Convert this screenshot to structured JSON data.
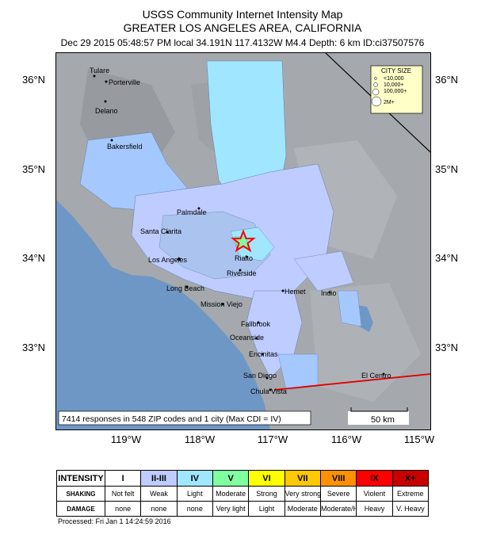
{
  "header": {
    "title": "USGS Community Internet Intensity Map",
    "region": "GREATER LOS ANGELES AREA, CALIFORNIA",
    "event_line": "Dec 29 2015 05:48:57 PM local 34.191N 117.4132W M4.4  Depth: 6 km ID:ci37507576"
  },
  "map": {
    "lat_ticks": [
      "36°N",
      "35°N",
      "34°N",
      "33°N"
    ],
    "lon_ticks": [
      "119°W",
      "118°W",
      "117°W",
      "116°W",
      "115°W"
    ],
    "cities": [
      "Tulare",
      "Porterville",
      "Delano",
      "Bakersfield",
      "Palmdale",
      "Santa Clarita",
      "Los Angeles",
      "Rialto",
      "Riverside",
      "Long Beach",
      "Hemet",
      "Indio",
      "Mission Viejo",
      "Fallbrook",
      "Oceanside",
      "Encinitas",
      "San Diego",
      "Chula Vista",
      "El Centro"
    ],
    "city_size_legend": {
      "title": "CITY SIZE",
      "entries": [
        "<10,000",
        "10,000+",
        "100,000+",
        "2M+"
      ]
    },
    "responses_note": "7414 responses in 548 ZIP codes and 1 city (Max CDI = IV)",
    "scale_bar": "50 km",
    "epicenter_icon": "star-icon"
  },
  "legend": {
    "row_labels": [
      "INTENSITY",
      "SHAKING",
      "DAMAGE"
    ],
    "columns": [
      {
        "intensity": "I",
        "shaking": "Not felt",
        "damage": "none",
        "color": "#ffffff"
      },
      {
        "intensity": "II-III",
        "shaking": "Weak",
        "damage": "none",
        "color": "#bfccff"
      },
      {
        "intensity": "IV",
        "shaking": "Light",
        "damage": "none",
        "color": "#a0e6ff"
      },
      {
        "intensity": "V",
        "shaking": "Moderate",
        "damage": "Very light",
        "color": "#80ffa0"
      },
      {
        "intensity": "VI",
        "shaking": "Strong",
        "damage": "Light",
        "color": "#ffff00"
      },
      {
        "intensity": "VII",
        "shaking": "Very strong",
        "damage": "Moderate",
        "color": "#ffc800"
      },
      {
        "intensity": "VIII",
        "shaking": "Severe",
        "damage": "Moderate/Heavy",
        "color": "#ff9100"
      },
      {
        "intensity": "IX",
        "shaking": "Violent",
        "damage": "Heavy",
        "color": "#ff0000"
      },
      {
        "intensity": "X+",
        "shaking": "Extreme",
        "damage": "V. Heavy",
        "color": "#c80000"
      }
    ]
  },
  "footer": {
    "processed": "Processed: Fri Jan  1 14:24:59 2016"
  }
}
